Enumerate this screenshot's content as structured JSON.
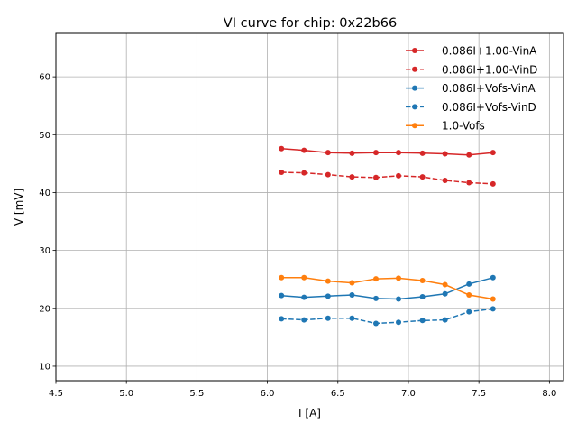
{
  "chart_data": {
    "type": "line",
    "title": "VI curve for chip: 0x22b66",
    "xlabel": "I [A]",
    "ylabel": "V [mV]",
    "xlim": [
      4.5,
      8.1
    ],
    "ylim": [
      7.5,
      67.5
    ],
    "xticks": [
      4.5,
      5.0,
      5.5,
      6.0,
      6.5,
      7.0,
      7.5,
      8.0
    ],
    "xtick_labels": [
      "4.5",
      "5.0",
      "5.5",
      "6.0",
      "6.5",
      "7.0",
      "7.5",
      "8.0"
    ],
    "yticks": [
      10,
      20,
      30,
      40,
      50,
      60
    ],
    "ytick_labels": [
      "10",
      "20",
      "30",
      "40",
      "50",
      "60"
    ],
    "grid": true,
    "legend_position": "top-right",
    "x": [
      6.1,
      6.26,
      6.43,
      6.6,
      6.77,
      6.93,
      7.1,
      7.26,
      7.43,
      7.6
    ],
    "series": [
      {
        "name": "0.086I+1.00-VinA",
        "color": "#d62728",
        "dashed": false,
        "values": [
          47.6,
          47.3,
          46.9,
          46.8,
          46.9,
          46.9,
          46.8,
          46.7,
          46.5,
          46.9
        ]
      },
      {
        "name": "0.086I+1.00-VinD",
        "color": "#d62728",
        "dashed": true,
        "values": [
          43.5,
          43.4,
          43.1,
          42.7,
          42.6,
          42.9,
          42.7,
          42.1,
          41.7,
          41.5
        ]
      },
      {
        "name": "0.086I+Vofs-VinA",
        "color": "#1f77b4",
        "dashed": false,
        "values": [
          22.2,
          21.9,
          22.1,
          22.3,
          21.7,
          21.6,
          22.0,
          22.5,
          24.2,
          25.3
        ]
      },
      {
        "name": "0.086I+Vofs-VinD",
        "color": "#1f77b4",
        "dashed": true,
        "values": [
          18.2,
          18.0,
          18.3,
          18.3,
          17.4,
          17.6,
          17.9,
          18.0,
          19.4,
          19.9
        ]
      },
      {
        "name": "1.0-Vofs",
        "color": "#ff7f0e",
        "dashed": false,
        "values": [
          25.3,
          25.3,
          24.7,
          24.4,
          25.1,
          25.2,
          24.8,
          24.1,
          22.3,
          21.6
        ]
      }
    ]
  }
}
